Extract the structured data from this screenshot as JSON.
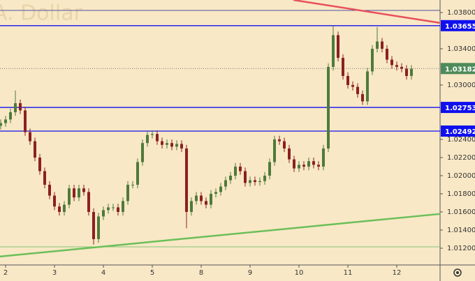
{
  "chart_data": {
    "type": "candlestick",
    "title": "A. Dollar",
    "categories": [
      null,
      "2",
      null,
      null,
      null,
      null,
      null,
      null,
      null,
      null,
      null,
      "3",
      null,
      null,
      null,
      null,
      null,
      null,
      null,
      null,
      null,
      "4",
      null,
      null,
      null,
      null,
      null,
      null,
      null,
      null,
      null,
      "5",
      null,
      null,
      null,
      null,
      null,
      null,
      null,
      null,
      null,
      "8",
      null,
      null,
      null,
      null,
      null,
      null,
      null,
      null,
      null,
      "9",
      null,
      null,
      null,
      null,
      null,
      null,
      null,
      null,
      null,
      "10",
      null,
      null,
      null,
      null,
      null,
      null,
      null,
      null,
      null,
      "11",
      null,
      null,
      null,
      null,
      null,
      null,
      null,
      null,
      null,
      "12",
      null,
      null,
      null
    ],
    "open": [
      1.0255,
      1.0258,
      1.0262,
      1.027,
      1.028,
      1.0272,
      1.0248,
      1.0238,
      1.022,
      1.0205,
      1.019,
      1.0178,
      1.0166,
      1.016,
      1.0168,
      1.0186,
      1.0176,
      1.0186,
      1.0182,
      1.016,
      1.013,
      1.0155,
      1.0162,
      1.0165,
      1.0165,
      1.016,
      1.0172,
      1.019,
      1.019,
      1.0215,
      1.0236,
      1.0245,
      1.0246,
      1.0238,
      1.0234,
      1.0236,
      1.0232,
      1.0235,
      1.023,
      1.016,
      1.0172,
      1.0178,
      1.0172,
      1.0168,
      1.018,
      1.0182,
      1.0188,
      1.0195,
      1.02,
      1.021,
      1.0205,
      1.0192,
      1.0195,
      1.0193,
      1.0194,
      1.02,
      1.0215,
      1.024,
      1.0238,
      1.023,
      1.0218,
      1.0208,
      1.0212,
      1.021,
      1.0216,
      1.0212,
      1.021,
      1.023,
      1.032,
      1.0355,
      1.033,
      1.031,
      1.03,
      1.0298,
      1.029,
      1.0282,
      1.0315,
      1.034,
      1.0348,
      1.034,
      1.0328,
      1.0322,
      1.032,
      1.0318,
      1.031
    ],
    "high": [
      1.0262,
      1.0266,
      1.0274,
      1.0294,
      1.0284,
      1.0276,
      1.0252,
      1.0242,
      1.0224,
      1.0209,
      1.0194,
      1.0182,
      1.017,
      1.0172,
      1.019,
      1.019,
      1.019,
      1.019,
      1.0186,
      1.0164,
      1.0159,
      1.0166,
      1.0169,
      1.0169,
      1.0169,
      1.0176,
      1.0194,
      1.0194,
      1.0219,
      1.024,
      1.0249,
      1.025,
      1.025,
      1.0242,
      1.024,
      1.024,
      1.0239,
      1.0239,
      1.0234,
      1.0176,
      1.0182,
      1.0182,
      1.0176,
      1.0184,
      1.0186,
      1.0192,
      1.0199,
      1.0204,
      1.0214,
      1.0214,
      1.0209,
      1.0199,
      1.0199,
      1.0198,
      1.0204,
      1.0219,
      1.0244,
      1.0244,
      1.0242,
      1.0234,
      1.0222,
      1.0216,
      1.0216,
      1.022,
      1.022,
      1.0216,
      1.0234,
      1.0324,
      1.03655,
      1.0359,
      1.0334,
      1.0314,
      1.0304,
      1.0302,
      1.0294,
      1.0319,
      1.0344,
      1.0364,
      1.0352,
      1.0344,
      1.0332,
      1.0326,
      1.0324,
      1.0322,
      1.0322
    ],
    "low": [
      1.0251,
      1.0254,
      1.0258,
      1.0266,
      1.0268,
      1.0244,
      1.0234,
      1.0216,
      1.0201,
      1.0186,
      1.0174,
      1.0162,
      1.0156,
      1.0156,
      1.0164,
      1.0172,
      1.0172,
      1.0178,
      1.0156,
      1.0124,
      1.0126,
      1.0151,
      1.0158,
      1.0161,
      1.0156,
      1.0156,
      1.0168,
      1.0186,
      1.0186,
      1.0211,
      1.0232,
      1.0241,
      1.0234,
      1.023,
      1.023,
      1.0228,
      1.0228,
      1.0226,
      1.0142,
      1.0156,
      1.0168,
      1.0168,
      1.0164,
      1.0164,
      1.0176,
      1.0178,
      1.0184,
      1.0191,
      1.0196,
      1.0201,
      1.0188,
      1.0188,
      1.0189,
      1.0189,
      1.019,
      1.0196,
      1.0211,
      1.0234,
      1.0226,
      1.0214,
      1.0204,
      1.0204,
      1.0206,
      1.0206,
      1.0208,
      1.0206,
      1.0206,
      1.0226,
      1.0316,
      1.0326,
      1.0306,
      1.0296,
      1.0294,
      1.0286,
      1.0278,
      1.0278,
      1.0311,
      1.0336,
      1.0336,
      1.0324,
      1.0318,
      1.0316,
      1.0314,
      1.0306,
      1.0306
    ],
    "close": [
      1.0258,
      1.0262,
      1.027,
      1.028,
      1.0272,
      1.0248,
      1.0238,
      1.022,
      1.0205,
      1.019,
      1.0178,
      1.0166,
      1.016,
      1.0168,
      1.0186,
      1.0176,
      1.0186,
      1.0182,
      1.016,
      1.013,
      1.0155,
      1.0162,
      1.0165,
      1.0165,
      1.016,
      1.0172,
      1.019,
      1.019,
      1.0215,
      1.0236,
      1.0245,
      1.0246,
      1.0238,
      1.0234,
      1.0236,
      1.0232,
      1.0235,
      1.023,
      1.016,
      1.0172,
      1.0178,
      1.0172,
      1.0168,
      1.018,
      1.0182,
      1.0188,
      1.0195,
      1.02,
      1.021,
      1.0205,
      1.0192,
      1.0195,
      1.0193,
      1.0194,
      1.02,
      1.0215,
      1.024,
      1.0238,
      1.023,
      1.0218,
      1.0208,
      1.0212,
      1.021,
      1.0216,
      1.0212,
      1.021,
      1.023,
      1.032,
      1.0355,
      1.033,
      1.031,
      1.03,
      1.0298,
      1.029,
      1.0282,
      1.0315,
      1.034,
      1.0348,
      1.034,
      1.0328,
      1.0322,
      1.032,
      1.0318,
      1.031,
      1.0318
    ],
    "up_color": "#4f7a3a",
    "down_color": "#8c2020",
    "ylim": [
      1.01015,
      1.03938
    ],
    "yticks": [
      {
        "value": 1.038,
        "label": "1.03800"
      },
      {
        "value": 1.034,
        "label": "1.03400"
      },
      {
        "value": 1.03,
        "label": "1.03000"
      },
      {
        "value": 1.024,
        "label": "1.02400"
      },
      {
        "value": 1.022,
        "label": "1.02200"
      },
      {
        "value": 1.02,
        "label": "1.02000"
      },
      {
        "value": 1.018,
        "label": "1.01800"
      },
      {
        "value": 1.016,
        "label": "1.01600"
      },
      {
        "value": 1.014,
        "label": "1.01400"
      },
      {
        "value": 1.012,
        "label": "1.01200"
      }
    ],
    "levels": [
      {
        "value": 1.03655,
        "label": "1.03655",
        "color": "#1010ee"
      },
      {
        "value": 1.02753,
        "label": "1.02753",
        "color": "#1010ee"
      },
      {
        "value": 1.02492,
        "label": "1.02492",
        "color": "#1010ee"
      }
    ],
    "lines": [
      {
        "value": 1.03823,
        "color": "#3a3a9a"
      },
      {
        "value": 1.01215,
        "color": "#5cb85c"
      }
    ],
    "last_price": {
      "value": 1.03182,
      "label": "1.03182",
      "color": "#4e8b5a"
    },
    "trendlines": [
      {
        "color": "#e8505b",
        "x": [
          59.9,
          89.9
        ],
        "y": [
          1.03938,
          1.03685
        ]
      },
      {
        "color": "#6bbf59",
        "x": [
          -0.14,
          89.86
        ],
        "y": [
          1.01108,
          1.01578
        ]
      }
    ]
  }
}
